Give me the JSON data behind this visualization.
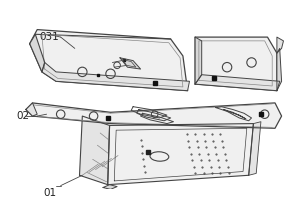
{
  "background_color": "#ffffff",
  "lc": "#444444",
  "lc_light": "#888888",
  "lc_fill": "#f0f0f0",
  "lc_fill2": "#e4e4e4",
  "lc_fill3": "#d8d8d8",
  "label_color": "#222222",
  "label_01": "01",
  "label_02": "02",
  "label_031": "031",
  "figsize": [
    3.0,
    2.0
  ],
  "dpi": 100
}
